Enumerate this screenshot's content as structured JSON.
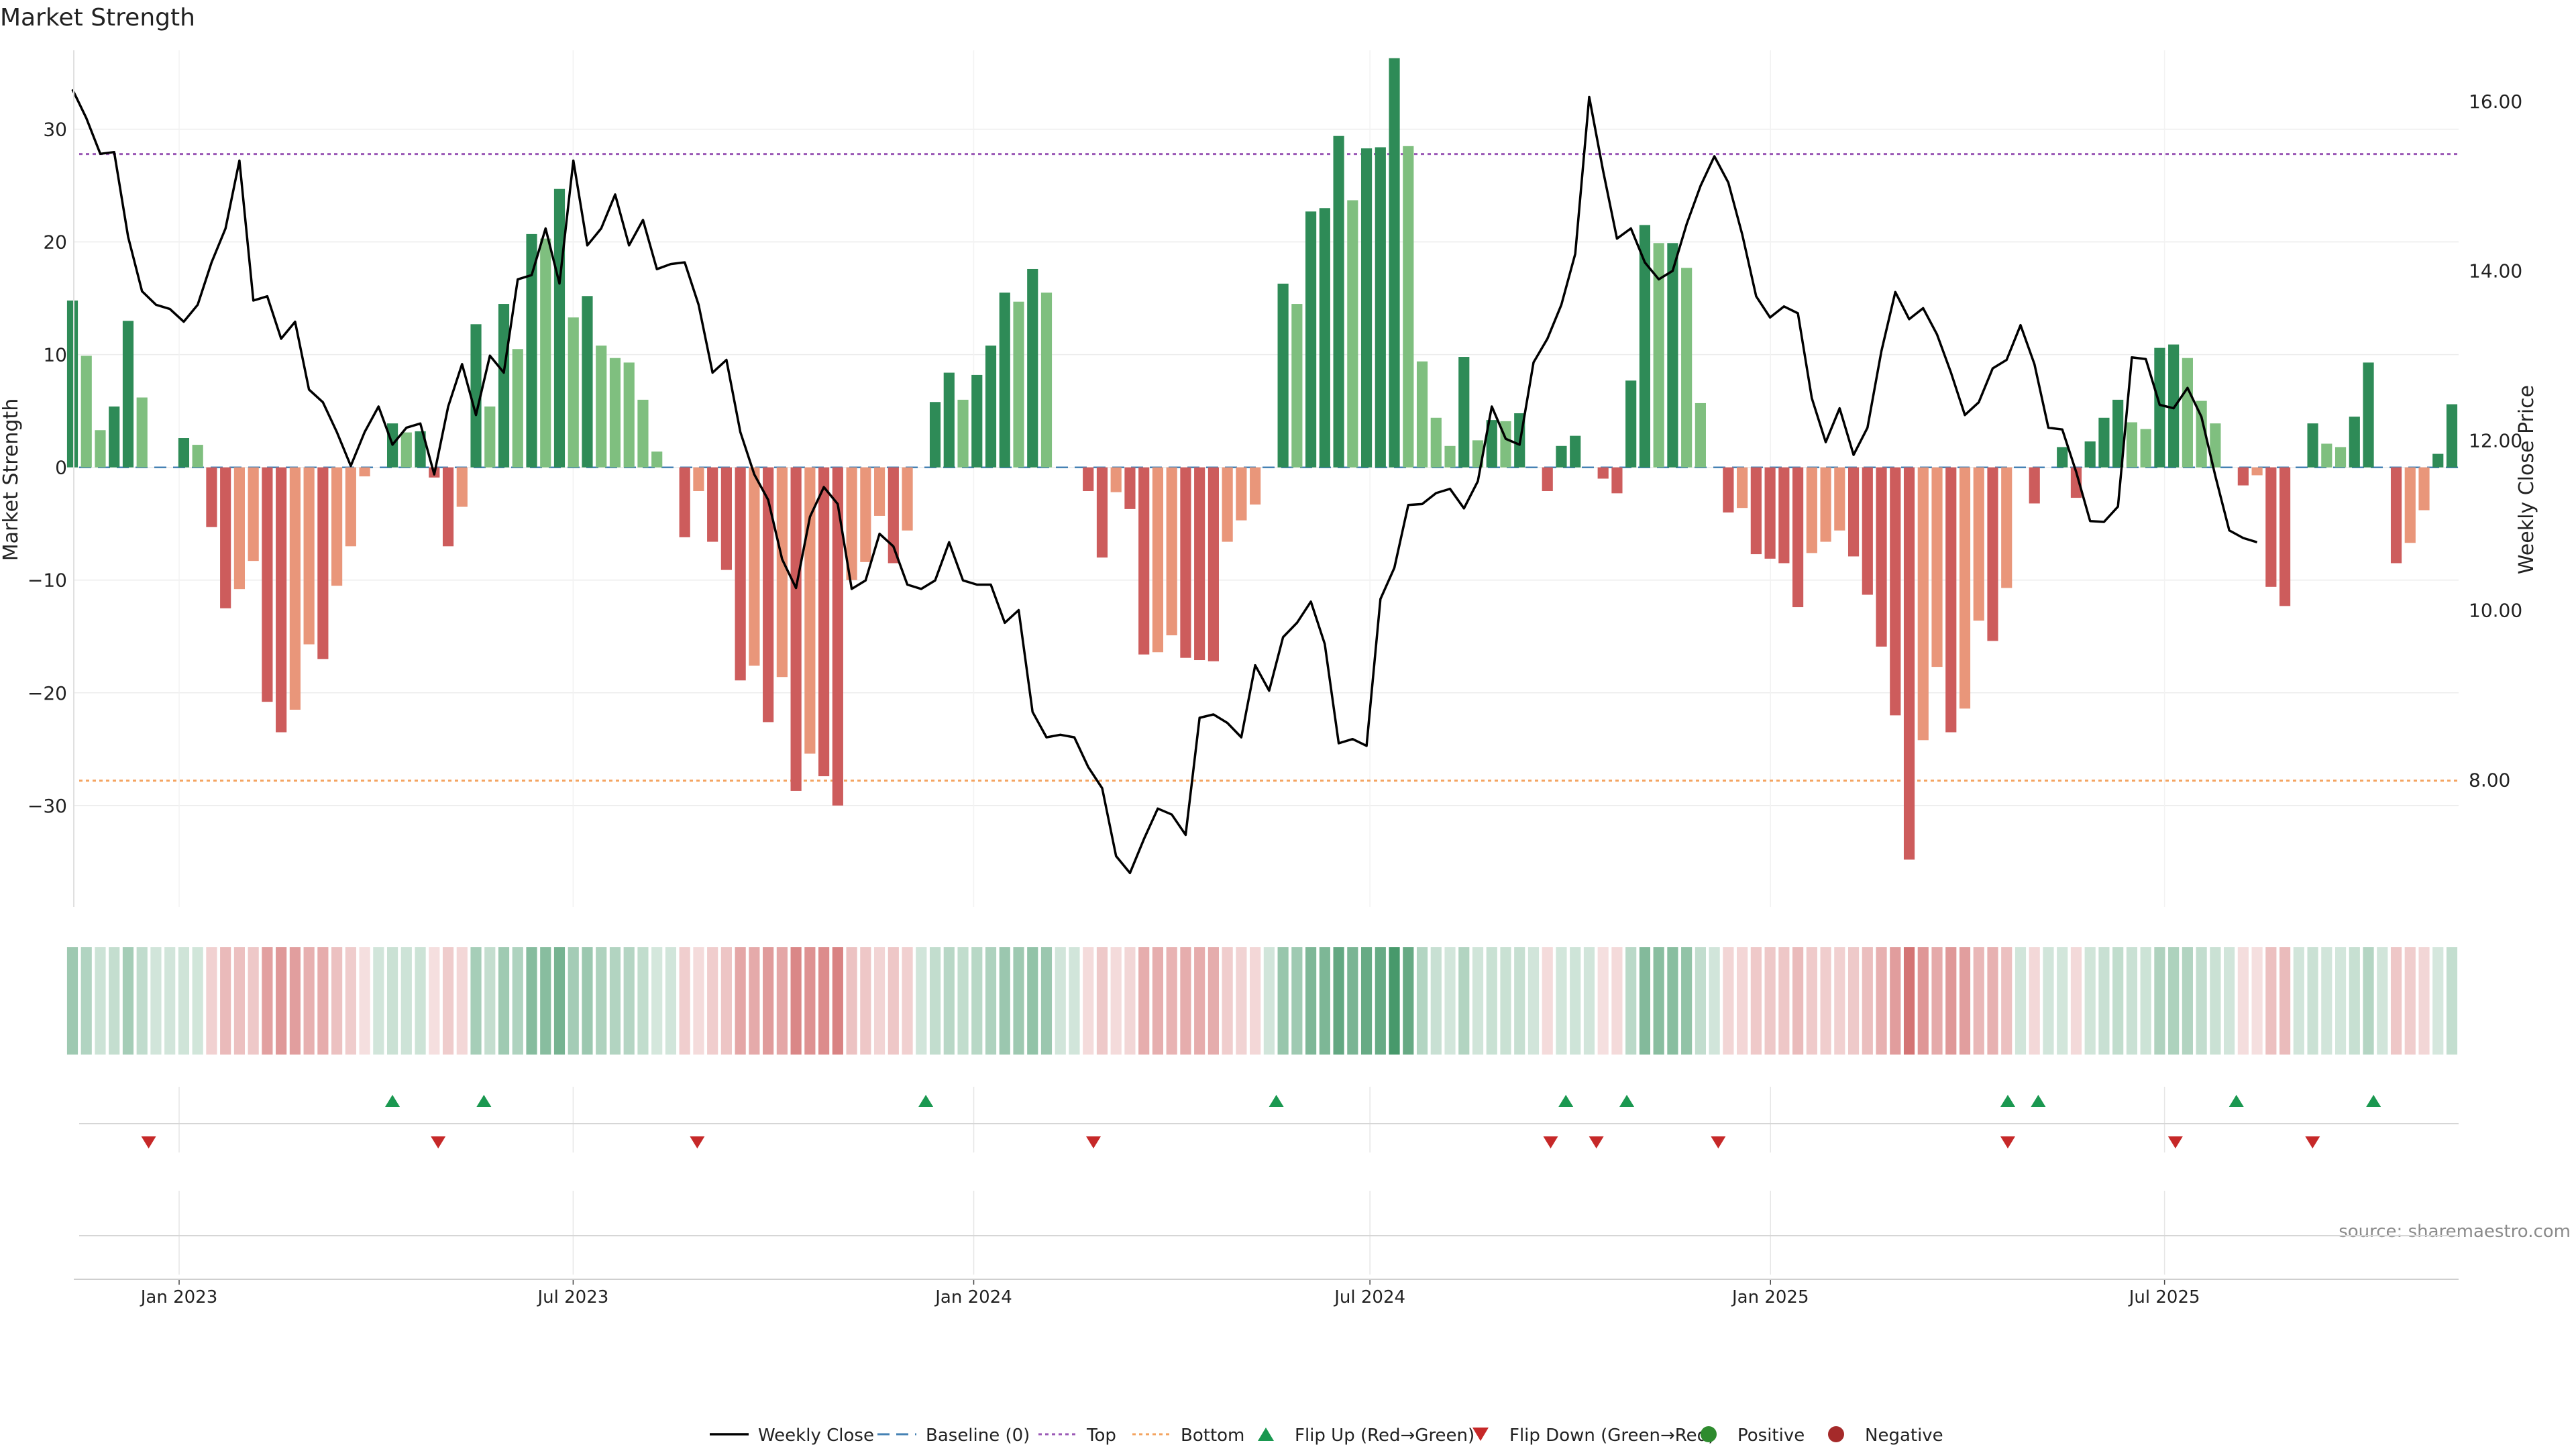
{
  "chart_data": {
    "type": "bar",
    "title": "Market Strength",
    "ylabel": "Market Strength",
    "y2label": "Weekly Close Price",
    "source": "source: sharemaestro.com",
    "ylim": [
      -39,
      37
    ],
    "y2lim": [
      6.5,
      16.6
    ],
    "y_ticks": [
      -30,
      -20,
      -10,
      0,
      10,
      20,
      30
    ],
    "y_tick_labels": [
      "−30",
      "−20",
      "−10",
      "0",
      "10",
      "20",
      "30"
    ],
    "y2_ticks": [
      8,
      10,
      12,
      14,
      16
    ],
    "y2_tick_labels": [
      "8.00",
      "10.00",
      "12.00",
      "14.00",
      "16.00"
    ],
    "x_start": "2022-11-13",
    "x_end": "2025-11-10",
    "x_ticks": [
      "2023-01-01",
      "2023-07-01",
      "2024-01-01",
      "2024-07-01",
      "2025-01-01",
      "2025-07-01"
    ],
    "x_tick_labels": [
      "Jan 2023",
      "Jul 2023",
      "Jan 2024",
      "Jul 2024",
      "Jan 2025",
      "Jul 2025"
    ],
    "top_level": 27.8,
    "bottom_level": -27.8,
    "grid": true,
    "legend_position": "bottom-center",
    "colors": {
      "pos_strong": "#2e8b57",
      "pos_light": "#7fbf7f",
      "neg_strong": "#cd5c5c",
      "neg_light": "#e9967a",
      "close": "#000000",
      "baseline": "#4682b4",
      "top": "#9b59b6",
      "bottom": "#f4a460",
      "flip_up": "#1a9850",
      "flip_down": "#c62828",
      "positive": "#2e8b2e",
      "negative": "#a52a2a"
    },
    "series": [
      {
        "name": "Market Strength",
        "values": [
          14.8,
          9.9,
          3.3,
          5.4,
          13,
          6.2,
          0,
          0,
          2.6,
          2,
          -5.3,
          -12.5,
          -10.8,
          -8.3,
          -20.8,
          -23.5,
          -21.5,
          -15.7,
          -17,
          -10.5,
          -7,
          -0.8,
          0,
          3.9,
          3.1,
          3.2,
          -0.9,
          -7,
          -3.5,
          12.7,
          5.4,
          14.5,
          10.5,
          20.7,
          20.3,
          24.7,
          13.3,
          15.2,
          10.8,
          9.7,
          9.3,
          6,
          1.4,
          0,
          -6.2,
          -2.1,
          -6.6,
          -9.1,
          -18.9,
          -17.6,
          -22.6,
          -18.6,
          -28.7,
          -25.4,
          -27.4,
          -30,
          -10,
          -8.4,
          -4.3,
          -8.5,
          -5.6,
          0,
          5.8,
          8.4,
          6,
          8.2,
          10.8,
          15.5,
          14.7,
          17.6,
          15.5,
          0,
          0,
          -2.1,
          -8,
          -2.2,
          -3.7,
          -16.6,
          -16.4,
          -14.9,
          -16.9,
          -17.1,
          -17.2,
          -6.6,
          -4.7,
          -3.3,
          0,
          16.3,
          14.5,
          22.7,
          23,
          29.4,
          23.7,
          28.3,
          28.4,
          36.3,
          28.5,
          9.4,
          4.4,
          1.9,
          9.8,
          2.4,
          4.2,
          4.1,
          4.8,
          0,
          -2.1,
          1.9,
          2.8,
          0,
          -1,
          -2.3,
          7.7,
          21.5,
          19.9,
          19.9,
          17.7,
          5.7,
          0,
          -4,
          -3.6,
          -7.7,
          -8.1,
          -8.5,
          -12.4,
          -7.6,
          -6.6,
          -5.6,
          -7.9,
          -11.3,
          -15.9,
          -22,
          -34.8,
          -24.2,
          -17.7,
          -23.5,
          -21.4,
          -13.6,
          -15.4,
          -10.7,
          0,
          -3.2,
          0,
          1.8,
          -2.7,
          2.3,
          4.4,
          6,
          4,
          3.4,
          10.6,
          10.9,
          9.7,
          5.9,
          3.9,
          0,
          -1.6,
          -0.7,
          -10.6,
          -12.3,
          0,
          3.9,
          2.1,
          1.8,
          4.5,
          9.3,
          0,
          -8.5,
          -6.7,
          -3.8,
          1.2,
          5.6
        ]
      },
      {
        "name": "Weekly Close",
        "values": [
          16.14,
          15.8,
          15.38,
          15.4,
          14.4,
          13.76,
          13.6,
          13.55,
          13.4,
          13.6,
          14.1,
          14.5,
          15.3,
          13.65,
          13.7,
          13.2,
          13.4,
          12.6,
          12.45,
          12.1,
          11.7,
          12.1,
          12.4,
          11.95,
          12.15,
          12.2,
          11.6,
          12.4,
          12.9,
          12.3,
          13,
          12.8,
          13.9,
          13.95,
          14.5,
          13.85,
          15.3,
          14.3,
          14.5,
          14.9,
          14.3,
          14.6,
          14.02,
          14.08,
          14.1,
          13.6,
          12.8,
          12.95,
          12.1,
          11.6,
          11.3,
          10.6,
          10.26,
          11.1,
          11.45,
          11.25,
          10.25,
          10.35,
          10.9,
          10.75,
          10.3,
          10.25,
          10.35,
          10.8,
          10.35,
          10.3,
          10.3,
          9.85,
          10,
          8.8,
          8.5,
          8.53,
          8.5,
          8.15,
          7.9,
          7.1,
          6.9,
          7.3,
          7.66,
          7.59,
          7.35,
          8.73,
          8.77,
          8.67,
          8.5,
          9.35,
          9.05,
          9.68,
          9.85,
          10.1,
          9.6,
          8.43,
          8.48,
          8.4,
          10.13,
          10.5,
          11.24,
          11.25,
          11.38,
          11.43,
          11.2,
          11.52,
          12.4,
          12.02,
          11.95,
          12.92,
          13.2,
          13.6,
          14.2,
          16.05,
          15.18,
          14.38,
          14.5,
          14.1,
          13.9,
          14,
          14.55,
          15,
          15.35,
          15.04,
          14.43,
          13.7,
          13.45,
          13.58,
          13.5,
          12.5,
          11.98,
          12.38,
          11.83,
          12.15,
          13.05,
          13.75,
          13.43,
          13.56,
          13.25,
          12.8,
          12.3,
          12.45,
          12.85,
          12.95,
          13.36,
          12.9,
          12.15,
          12.13,
          11.63,
          11.05,
          11.04,
          11.22,
          12.98,
          12.96,
          12.42,
          12.38,
          12.62,
          12.28,
          11.58,
          10.94,
          10.85,
          10.8
        ]
      }
    ],
    "flip_up_dates": [
      "2023-04-09",
      "2023-05-21",
      "2023-12-10",
      "2024-05-19",
      "2024-09-29",
      "2024-10-27",
      "2025-04-20",
      "2025-05-04",
      "2025-08-03",
      "2025-10-05"
    ],
    "flip_down_dates": [
      "2022-12-18",
      "2023-04-30",
      "2023-08-27",
      "2024-02-25",
      "2024-09-22",
      "2024-10-13",
      "2024-12-08",
      "2025-04-20",
      "2025-07-06",
      "2025-09-07"
    ],
    "legend": [
      {
        "label": "Weekly Close",
        "icon": "line-icon"
      },
      {
        "label": "Baseline (0)",
        "icon": "dashed-line-icon"
      },
      {
        "label": "Top",
        "icon": "dotted-line-icon"
      },
      {
        "label": "Bottom",
        "icon": "dotted-line-icon"
      },
      {
        "label": "Flip Up (Red→Green)",
        "icon": "triangle-up-icon"
      },
      {
        "label": "Flip Down (Green→Red)",
        "icon": "triangle-down-icon"
      },
      {
        "label": "Positive",
        "icon": "circle-icon"
      },
      {
        "label": "Negative",
        "icon": "circle-icon"
      }
    ]
  }
}
